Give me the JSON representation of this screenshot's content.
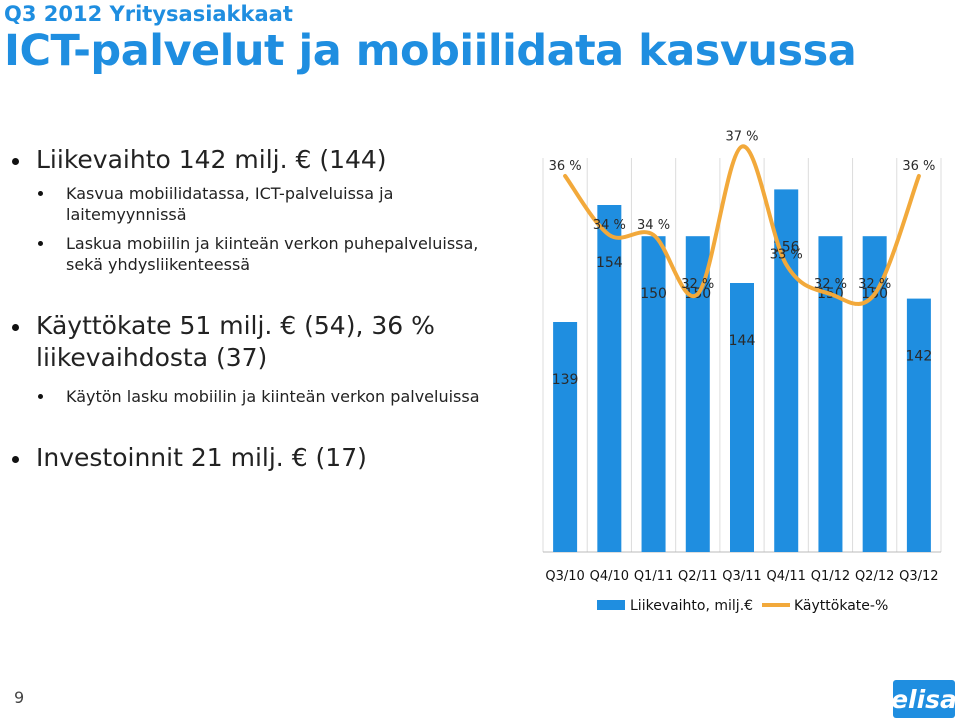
{
  "header": {
    "subtitle": "Q3 2012 Yritysasiakkaat",
    "title": "ICT-palvelut ja mobiilidata kasvussa"
  },
  "bullets": {
    "b1": "Liikevaihto 142 milj. € (144)",
    "b1_sub1_line1": "Kasvua mobiilidatassa, ICT-palveluissa ja",
    "b1_sub1_line2": "laitemyynnissä",
    "b1_sub2_line1": "Laskua mobiilin ja kiinteän verkon puhepalveluissa,",
    "b1_sub2_line2": "sekä yhdysliikenteessä",
    "b2_line1": "Käyttökate 51 milj. € (54), 36 %",
    "b2_line2": "liikevaihdosta (37)",
    "b2_sub1": "Käytön lasku mobiilin ja kiinteän verkon palveluissa",
    "b3": "Investoinnit 21 milj. € (17)"
  },
  "footer": {
    "page_number": "9",
    "logo_text": "elisa"
  },
  "colors": {
    "title": "#1f8ee0",
    "bar": "#1f8ee0",
    "line": "#f2a93b"
  },
  "chart_data": {
    "type": "bar",
    "categories": [
      "Q3/10",
      "Q4/10",
      "Q1/11",
      "Q2/11",
      "Q3/11",
      "Q4/11",
      "Q1/12",
      "Q2/12",
      "Q3/12"
    ],
    "series": [
      {
        "name": "Liikevaihto, milj.€",
        "type": "bar",
        "values": [
          139,
          154,
          150,
          150,
          144,
          156,
          150,
          150,
          142
        ],
        "labels": [
          "139",
          "154",
          "150",
          "150",
          "144",
          "156",
          "150",
          "150",
          "142"
        ]
      },
      {
        "name": "Käyttökate-%",
        "type": "line",
        "values": [
          36,
          34,
          34,
          32,
          37,
          33,
          32,
          32,
          36
        ],
        "labels": [
          "36 %",
          "34 %",
          "34 %",
          "32 %",
          "37 %",
          "33 %",
          "32 %",
          "32 %",
          "36 %"
        ]
      }
    ],
    "legend_position": "bottom",
    "gridlines": true
  }
}
